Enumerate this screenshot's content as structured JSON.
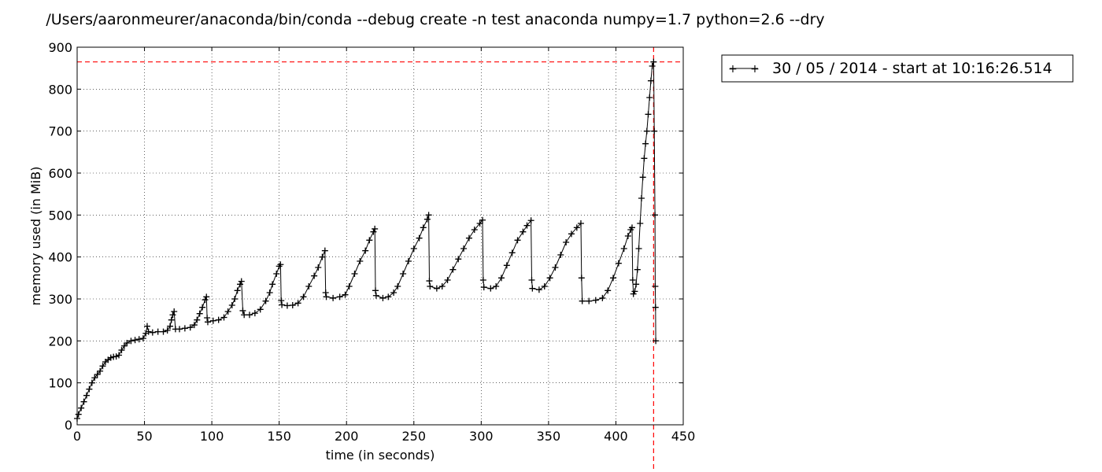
{
  "chart_data": {
    "type": "line",
    "title": "/Users/aaronmeurer/anaconda/bin/conda --debug create -n test anaconda numpy=1.7 python=2.6 --dry",
    "xlabel": "time (in seconds)",
    "ylabel": "memory used (in MiB)",
    "xlim": [
      0,
      450
    ],
    "ylim": [
      0,
      900
    ],
    "xticks": [
      0,
      50,
      100,
      150,
      200,
      250,
      300,
      350,
      400,
      450
    ],
    "yticks": [
      0,
      100,
      200,
      300,
      400,
      500,
      600,
      700,
      800,
      900
    ],
    "grid": true,
    "legend_position": "outside-top-right",
    "marker": "+",
    "line_color": "#000000",
    "reference_line_color": "#ff0000",
    "max_memory_line_y": 865,
    "end_time_line_x": 428,
    "series": [
      {
        "name": "30 / 05 / 2014 - start at 10:16:26.514",
        "points": [
          [
            0,
            15
          ],
          [
            1,
            25
          ],
          [
            3,
            40
          ],
          [
            5,
            55
          ],
          [
            7,
            70
          ],
          [
            9,
            85
          ],
          [
            11,
            100
          ],
          [
            13,
            112
          ],
          [
            15,
            120
          ],
          [
            17,
            128
          ],
          [
            19,
            140
          ],
          [
            21,
            150
          ],
          [
            23,
            155
          ],
          [
            25,
            160
          ],
          [
            27,
            162
          ],
          [
            29,
            163
          ],
          [
            31,
            166
          ],
          [
            33,
            178
          ],
          [
            35,
            188
          ],
          [
            37,
            195
          ],
          [
            40,
            200
          ],
          [
            43,
            202
          ],
          [
            46,
            204
          ],
          [
            49,
            206
          ],
          [
            51,
            218
          ],
          [
            52,
            235
          ],
          [
            53,
            222
          ],
          [
            56,
            220
          ],
          [
            60,
            222
          ],
          [
            64,
            222
          ],
          [
            67,
            225
          ],
          [
            69,
            235
          ],
          [
            70,
            250
          ],
          [
            71,
            262
          ],
          [
            72,
            270
          ],
          [
            73,
            228
          ],
          [
            76,
            228
          ],
          [
            80,
            230
          ],
          [
            84,
            232
          ],
          [
            87,
            238
          ],
          [
            89,
            250
          ],
          [
            91,
            265
          ],
          [
            93,
            280
          ],
          [
            95,
            298
          ],
          [
            96,
            305
          ],
          [
            96.5,
            255
          ],
          [
            97,
            245
          ],
          [
            101,
            248
          ],
          [
            105,
            250
          ],
          [
            109,
            256
          ],
          [
            112,
            270
          ],
          [
            115,
            285
          ],
          [
            117,
            300
          ],
          [
            119,
            320
          ],
          [
            121,
            335
          ],
          [
            122,
            342
          ],
          [
            123,
            272
          ],
          [
            124,
            262
          ],
          [
            128,
            262
          ],
          [
            132,
            266
          ],
          [
            136,
            275
          ],
          [
            140,
            295
          ],
          [
            143,
            315
          ],
          [
            145,
            335
          ],
          [
            148,
            360
          ],
          [
            150,
            378
          ],
          [
            151,
            382
          ],
          [
            151.5,
            296
          ],
          [
            152,
            286
          ],
          [
            156,
            284
          ],
          [
            160,
            285
          ],
          [
            164,
            290
          ],
          [
            168,
            305
          ],
          [
            172,
            330
          ],
          [
            176,
            355
          ],
          [
            179,
            375
          ],
          [
            182,
            400
          ],
          [
            184,
            415
          ],
          [
            184.5,
            315
          ],
          [
            185,
            305
          ],
          [
            190,
            302
          ],
          [
            195,
            305
          ],
          [
            199,
            310
          ],
          [
            202,
            330
          ],
          [
            206,
            360
          ],
          [
            210,
            390
          ],
          [
            214,
            415
          ],
          [
            217,
            440
          ],
          [
            220,
            460
          ],
          [
            221,
            467
          ],
          [
            221.5,
            320
          ],
          [
            222,
            308
          ],
          [
            227,
            302
          ],
          [
            231,
            305
          ],
          [
            235,
            315
          ],
          [
            238,
            330
          ],
          [
            242,
            360
          ],
          [
            246,
            390
          ],
          [
            250,
            420
          ],
          [
            254,
            445
          ],
          [
            257,
            470
          ],
          [
            260,
            490
          ],
          [
            261,
            500
          ],
          [
            261.5,
            343
          ],
          [
            262,
            330
          ],
          [
            267,
            325
          ],
          [
            271,
            330
          ],
          [
            275,
            345
          ],
          [
            279,
            370
          ],
          [
            283,
            395
          ],
          [
            287,
            420
          ],
          [
            291,
            445
          ],
          [
            295,
            465
          ],
          [
            299,
            480
          ],
          [
            301,
            488
          ],
          [
            301.5,
            345
          ],
          [
            302,
            328
          ],
          [
            307,
            325
          ],
          [
            311,
            330
          ],
          [
            315,
            350
          ],
          [
            319,
            380
          ],
          [
            323,
            410
          ],
          [
            327,
            440
          ],
          [
            331,
            460
          ],
          [
            334,
            475
          ],
          [
            337,
            487
          ],
          [
            337.5,
            345
          ],
          [
            338,
            325
          ],
          [
            343,
            322
          ],
          [
            347,
            330
          ],
          [
            351,
            350
          ],
          [
            355,
            375
          ],
          [
            359,
            405
          ],
          [
            363,
            435
          ],
          [
            367,
            455
          ],
          [
            371,
            470
          ],
          [
            374,
            480
          ],
          [
            374.5,
            350
          ],
          [
            375,
            295
          ],
          [
            380,
            295
          ],
          [
            385,
            297
          ],
          [
            390,
            302
          ],
          [
            394,
            320
          ],
          [
            398,
            350
          ],
          [
            402,
            385
          ],
          [
            406,
            420
          ],
          [
            409,
            450
          ],
          [
            411,
            465
          ],
          [
            412,
            470
          ],
          [
            412.5,
            345
          ],
          [
            413,
            312
          ],
          [
            414,
            318
          ],
          [
            415,
            335
          ],
          [
            416,
            370
          ],
          [
            417,
            420
          ],
          [
            418,
            480
          ],
          [
            419,
            540
          ],
          [
            420,
            590
          ],
          [
            421,
            635
          ],
          [
            422,
            670
          ],
          [
            423,
            700
          ],
          [
            424,
            740
          ],
          [
            425,
            780
          ],
          [
            426,
            820
          ],
          [
            427,
            855
          ],
          [
            428,
            865
          ],
          [
            428.5,
            700
          ],
          [
            429,
            500
          ],
          [
            429.2,
            330
          ],
          [
            429.4,
            280
          ],
          [
            429.6,
            200
          ]
        ]
      }
    ]
  }
}
